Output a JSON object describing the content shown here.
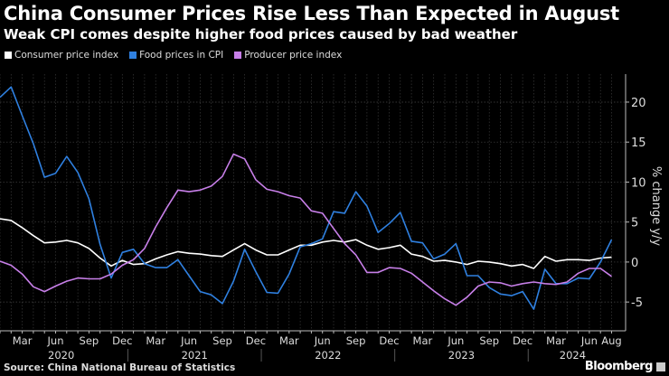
{
  "title": "China Consumer Prices Rise Less Than Expected in August",
  "subtitle": "Weak CPI comes despite higher food prices caused by bad weather",
  "source": "Source: China National Bureau of Statistics",
  "brand": "Bloomberg",
  "chart_data": {
    "type": "line",
    "title": "China Consumer Prices Rise Less Than Expected in August",
    "subtitle": "Weak CPI comes despite higher food prices caused by bad weather",
    "ylabel": "% change y/y",
    "xlabel": "",
    "ylim": [
      -8.6,
      23.5
    ],
    "yticks": [
      -5,
      0,
      5,
      10,
      15,
      20
    ],
    "grid": true,
    "legend_position": "top-left",
    "x_start": "2020-01",
    "x_end": "2024-08",
    "month_tick_labels": [
      {
        "month": "2020-03",
        "label": "Mar"
      },
      {
        "month": "2020-06",
        "label": "Jun"
      },
      {
        "month": "2020-09",
        "label": "Sep"
      },
      {
        "month": "2020-12",
        "label": "Dec"
      },
      {
        "month": "2021-03",
        "label": "Mar"
      },
      {
        "month": "2021-06",
        "label": "Jun"
      },
      {
        "month": "2021-09",
        "label": "Sep"
      },
      {
        "month": "2021-12",
        "label": "Dec"
      },
      {
        "month": "2022-03",
        "label": "Mar"
      },
      {
        "month": "2022-06",
        "label": "Jun"
      },
      {
        "month": "2022-09",
        "label": "Sep"
      },
      {
        "month": "2022-12",
        "label": "Dec"
      },
      {
        "month": "2023-03",
        "label": "Mar"
      },
      {
        "month": "2023-06",
        "label": "Jun"
      },
      {
        "month": "2023-09",
        "label": "Sep"
      },
      {
        "month": "2023-12",
        "label": "Dec"
      },
      {
        "month": "2024-03",
        "label": "Mar"
      },
      {
        "month": "2024-06",
        "label": "Jun"
      },
      {
        "month": "2024-08",
        "label": "Aug"
      }
    ],
    "year_labels": [
      "2020",
      "2021",
      "2022",
      "2023",
      "2024"
    ],
    "series": [
      {
        "name": "Consumer price index",
        "color": "#ffffff",
        "values": [
          5.4,
          5.2,
          4.3,
          3.3,
          2.4,
          2.5,
          2.7,
          2.4,
          1.7,
          0.5,
          -0.5,
          0.2,
          -0.3,
          -0.2,
          0.4,
          0.9,
          1.3,
          1.1,
          1.0,
          0.8,
          0.7,
          1.5,
          2.3,
          1.5,
          0.9,
          0.9,
          1.5,
          2.1,
          2.1,
          2.5,
          2.7,
          2.5,
          2.8,
          2.1,
          1.6,
          1.8,
          2.1,
          1.0,
          0.7,
          0.1,
          0.2,
          0.0,
          -0.3,
          0.1,
          0.0,
          -0.2,
          -0.5,
          -0.3,
          -0.8,
          0.7,
          0.1,
          0.3,
          0.3,
          0.2,
          0.5,
          0.6
        ]
      },
      {
        "name": "Food prices in CPI",
        "color": "#2f80e0",
        "values": [
          20.6,
          21.9,
          18.3,
          14.8,
          10.6,
          11.1,
          13.2,
          11.2,
          7.9,
          2.2,
          -2.0,
          1.2,
          1.6,
          -0.2,
          -0.7,
          -0.7,
          0.3,
          -1.7,
          -3.7,
          -4.1,
          -5.2,
          -2.4,
          1.6,
          -1.2,
          -3.8,
          -3.9,
          -1.5,
          1.9,
          2.3,
          2.9,
          6.3,
          6.1,
          8.8,
          7.0,
          3.7,
          4.8,
          6.2,
          2.6,
          2.4,
          0.4,
          1.0,
          2.3,
          -1.7,
          -1.7,
          -3.2,
          -4.0,
          -4.2,
          -3.7,
          -5.9,
          -0.9,
          -2.7,
          -2.7,
          -2.0,
          -2.1,
          0.0,
          2.8
        ]
      },
      {
        "name": "Producer price index",
        "color": "#c77fe8",
        "values": [
          0.1,
          -0.4,
          -1.5,
          -3.1,
          -3.7,
          -3.0,
          -2.4,
          -2.0,
          -2.1,
          -2.1,
          -1.5,
          -0.4,
          0.3,
          1.7,
          4.4,
          6.8,
          9.0,
          8.8,
          9.0,
          9.5,
          10.7,
          13.5,
          12.9,
          10.3,
          9.1,
          8.8,
          8.3,
          8.0,
          6.4,
          6.1,
          4.2,
          2.3,
          0.9,
          -1.3,
          -1.3,
          -0.7,
          -0.8,
          -1.4,
          -2.5,
          -3.6,
          -4.6,
          -5.4,
          -4.4,
          -3.0,
          -2.5,
          -2.6,
          -3.0,
          -2.7,
          -2.5,
          -2.7,
          -2.8,
          -2.5,
          -1.4,
          -0.8,
          -0.8,
          -1.8
        ]
      }
    ]
  }
}
